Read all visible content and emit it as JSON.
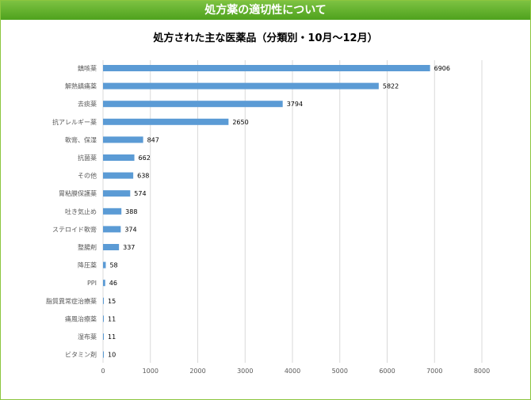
{
  "header": {
    "banner_title": "処方薬の適切性について"
  },
  "chart_data": {
    "type": "bar",
    "orientation": "horizontal",
    "title": "処方された主な医薬品（分類別・10月～12月）",
    "categories": [
      "鎮咳薬",
      "解熱鎮痛薬",
      "去痰薬",
      "抗アレルギー薬",
      "軟膏、保湿",
      "抗菌薬",
      "その他",
      "胃粘膜保護薬",
      "吐き気止め",
      "ステロイド軟膏",
      "整腸剤",
      "降圧薬",
      "PPI",
      "脂質異常症治療薬",
      "痛風治療薬",
      "湿布薬",
      "ビタミン剤"
    ],
    "values": [
      6906,
      5822,
      3794,
      2650,
      847,
      662,
      638,
      574,
      388,
      374,
      337,
      58,
      46,
      15,
      11,
      11,
      10
    ],
    "xlim": [
      0,
      8000
    ],
    "xticks": [
      0,
      1000,
      2000,
      3000,
      4000,
      5000,
      6000,
      7000,
      8000
    ],
    "grid": true,
    "bar_color": "#5b9bd5"
  }
}
